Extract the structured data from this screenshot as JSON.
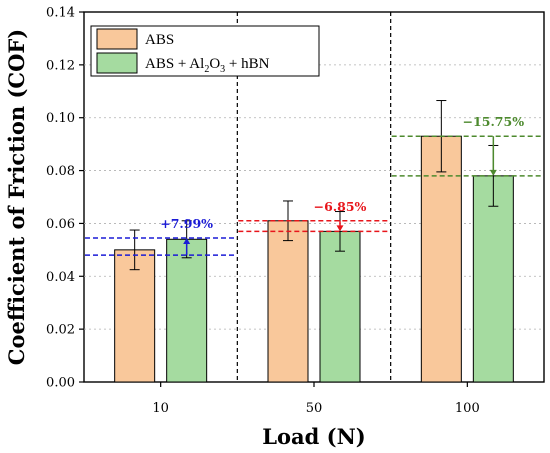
{
  "chart_data": {
    "type": "bar",
    "categories": [
      "10",
      "50",
      "100"
    ],
    "series": [
      {
        "name": "ABS",
        "values": [
          0.05,
          0.061,
          0.093
        ],
        "errors": [
          0.0075,
          0.0075,
          0.0135
        ],
        "color": "#f9c89b"
      },
      {
        "name": "ABS + Al2O3 + hBN",
        "values": [
          0.054,
          0.057,
          0.078
        ],
        "errors": [
          0.007,
          0.0075,
          0.0115
        ],
        "color": "#a5dba0"
      }
    ],
    "legend": {
      "position": "top-left",
      "items": [
        {
          "text": "ABS"
        },
        {
          "text": "ABS + Al",
          "sub1": "2",
          "mid": "O",
          "sub2": "3",
          "tail": " + hBN"
        }
      ]
    },
    "xlabel": "Load (N)",
    "ylabel": "Coefficient of Friction (COF)",
    "ylim": [
      0,
      0.14
    ],
    "yticks": [
      "0.00",
      "0.02",
      "0.04",
      "0.06",
      "0.08",
      "0.10",
      "0.12",
      "0.14"
    ],
    "grid": "horizontal dotted",
    "annotations": [
      {
        "text": "+7.99%",
        "category": "10",
        "from": 0.048,
        "to": 0.0545,
        "color": "#1b1bd6"
      },
      {
        "text": "−6.85%",
        "category": "50",
        "from": 0.061,
        "to": 0.057,
        "color": "#e8151b"
      },
      {
        "text": "−15.75%",
        "category": "100",
        "from": 0.093,
        "to": 0.078,
        "color": "#4d8a2e"
      }
    ]
  }
}
